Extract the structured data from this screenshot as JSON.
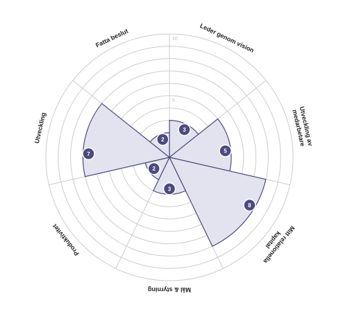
{
  "chart_data": {
    "type": "polar-area",
    "rmax": 10,
    "ring_count": 10,
    "tick_labels": [
      "5",
      "10"
    ],
    "categories": [
      "Leder genom vision",
      "Utveckling av medarbetare",
      "Mitt relationella kapital",
      "Mål & styrning",
      "Produktivitet",
      "Utveckling",
      "Fatta beslut"
    ],
    "label_lines": [
      [
        "Leder genom vision"
      ],
      [
        "Utveckling av",
        "medarbetare"
      ],
      [
        "Mitt relationella",
        "kapital"
      ],
      [
        "Mål & styrning"
      ],
      [
        "Produktivitet"
      ],
      [
        "Utveckling"
      ],
      [
        "Fatta beslut"
      ]
    ],
    "values": [
      3,
      5,
      8,
      3,
      2,
      7,
      2
    ],
    "colors": {
      "fill": "#e3e3ef",
      "stroke": "#4c4a7f",
      "badge": "#4c4a7f",
      "grid": "#cccccc"
    }
  }
}
